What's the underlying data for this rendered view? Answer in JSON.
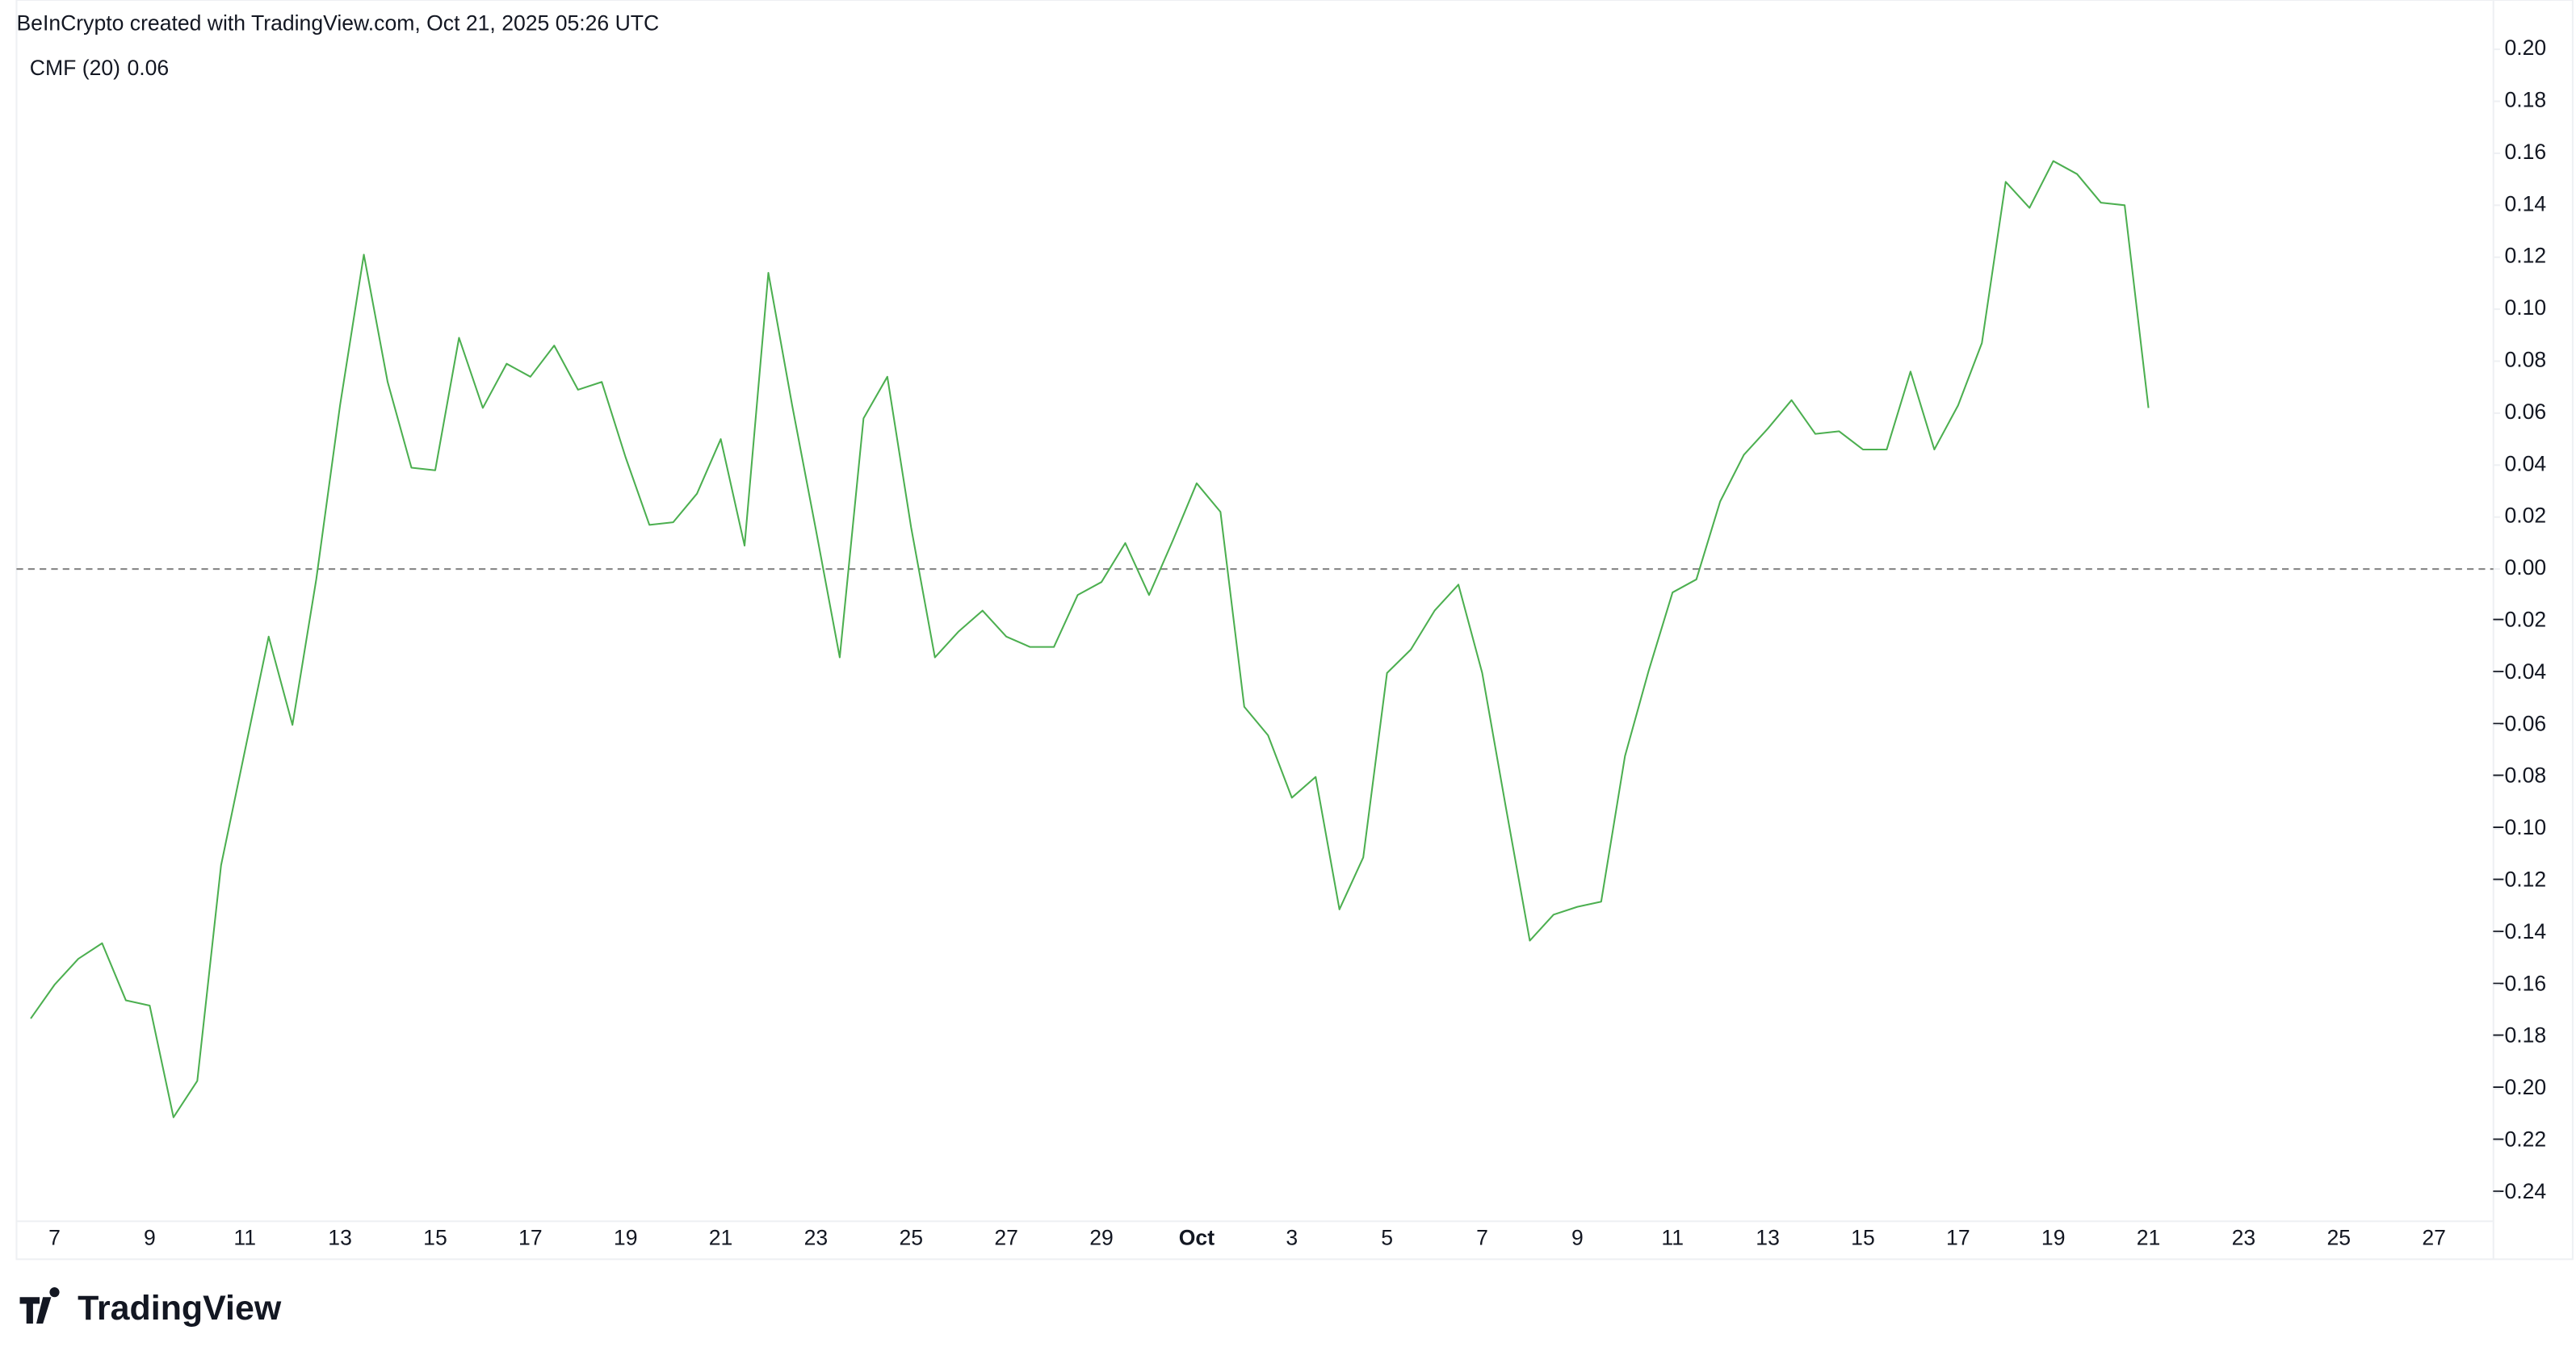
{
  "header": {
    "credit": "BeInCrypto created with TradingView.com, Oct 21, 2025 05:26 UTC",
    "logo": "TradingView"
  },
  "chart_data": {
    "type": "line",
    "last_value_label": "0.06",
    "categories": [
      null,
      "7",
      null,
      null,
      null,
      "9",
      null,
      null,
      null,
      "11",
      null,
      null,
      null,
      "13",
      null,
      null,
      null,
      "15",
      null,
      null,
      null,
      "17",
      null,
      null,
      null,
      "19",
      null,
      null,
      null,
      "21",
      null,
      null,
      null,
      "23",
      null,
      null,
      null,
      "25",
      null,
      null,
      null,
      "27",
      null,
      null,
      null,
      "29",
      null,
      null,
      null,
      "Oct",
      null,
      null,
      null,
      "3",
      null,
      null,
      null,
      "5",
      null,
      null,
      null,
      "7",
      null,
      null,
      null,
      "9",
      null,
      null,
      null,
      "11",
      null,
      null,
      null,
      "13",
      null,
      null,
      null,
      "15",
      null,
      null,
      null,
      "17",
      null,
      null,
      null,
      "19",
      null,
      null,
      null,
      "21",
      null,
      null,
      null,
      "23",
      null,
      null,
      null,
      "25",
      null,
      null,
      null,
      "27"
    ],
    "series": [
      {
        "name": "CMF (20)",
        "color": "#4caf50",
        "values": [
          -0.173,
          -0.16,
          -0.15,
          -0.144,
          -0.166,
          -0.168,
          -0.211,
          -0.197,
          -0.114,
          -0.07,
          -0.026,
          -0.06,
          -0.004,
          0.063,
          0.121,
          0.072,
          0.039,
          0.038,
          0.089,
          0.062,
          0.079,
          0.074,
          0.086,
          0.069,
          0.072,
          0.043,
          0.017,
          0.018,
          0.029,
          0.05,
          0.009,
          0.114,
          0.063,
          0.015,
          -0.034,
          0.058,
          0.074,
          0.016,
          -0.034,
          -0.024,
          -0.016,
          -0.026,
          -0.03,
          -0.03,
          -0.01,
          -0.005,
          0.01,
          -0.01,
          0.011,
          0.033,
          0.022,
          -0.053,
          -0.064,
          -0.088,
          -0.08,
          -0.131,
          -0.111,
          -0.04,
          -0.031,
          -0.016,
          -0.006,
          -0.04,
          -0.092,
          -0.143,
          -0.133,
          -0.13,
          -0.128,
          -0.072,
          -0.039,
          -0.009,
          -0.004,
          0.026,
          0.044,
          0.054,
          0.065,
          0.052,
          0.053,
          0.046,
          0.046,
          0.076,
          0.046,
          0.063,
          0.087,
          0.149,
          0.139,
          0.157,
          0.152,
          0.141,
          0.14,
          0.062,
          null,
          null,
          null,
          null,
          null,
          null,
          null,
          null,
          null,
          null,
          null,
          null
        ]
      }
    ],
    "ylim": [
      -0.251,
      0.205
    ],
    "yticks": [
      {
        "value": 0.2,
        "label": "0.20"
      },
      {
        "value": 0.18,
        "label": "0.18"
      },
      {
        "value": 0.16,
        "label": "0.16"
      },
      {
        "value": 0.14,
        "label": "0.14"
      },
      {
        "value": 0.12,
        "label": "0.12"
      },
      {
        "value": 0.1,
        "label": "0.10"
      },
      {
        "value": 0.08,
        "label": "0.08"
      },
      {
        "value": 0.06,
        "label": "0.06"
      },
      {
        "value": 0.04,
        "label": "0.04"
      },
      {
        "value": 0.02,
        "label": "0.02"
      },
      {
        "value": 0,
        "label": "0.00"
      },
      {
        "value": -0.02,
        "label": "−0.02"
      },
      {
        "value": -0.04,
        "label": "−0.04"
      },
      {
        "value": -0.06,
        "label": "−0.06"
      },
      {
        "value": -0.08,
        "label": "−0.08"
      },
      {
        "value": -0.1,
        "label": "−0.10"
      },
      {
        "value": -0.12,
        "label": "−0.12"
      },
      {
        "value": -0.14,
        "label": "−0.14"
      },
      {
        "value": -0.16,
        "label": "−0.16"
      },
      {
        "value": -0.18,
        "label": "−0.18"
      },
      {
        "value": -0.2,
        "label": "−0.20"
      },
      {
        "value": -0.22,
        "label": "−0.22"
      },
      {
        "value": -0.24,
        "label": "−0.24"
      }
    ],
    "reference_line": 0,
    "grid": false
  }
}
